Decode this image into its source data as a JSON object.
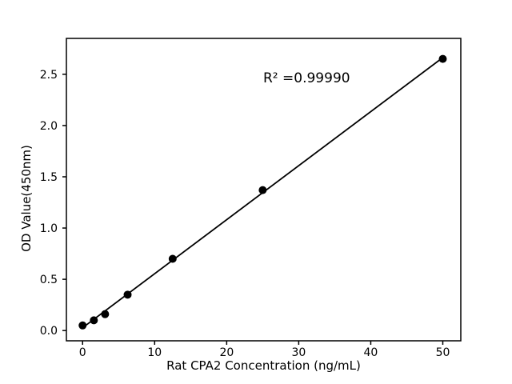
{
  "chart_data": {
    "type": "scatter",
    "title": "",
    "xlabel": "Rat CPA2 Concentration (ng/mL)",
    "ylabel": "OD Value(450nm)",
    "annotation": {
      "text": "R² =0.99990",
      "x": 25.2,
      "y": 2.45
    },
    "x": [
      0,
      1.56,
      3.12,
      6.25,
      12.5,
      25,
      50
    ],
    "y": [
      0.05,
      0.1,
      0.16,
      0.35,
      0.7,
      1.37,
      2.65
    ],
    "fit": "linear",
    "xlim": [
      -2.25,
      52.5
    ],
    "ylim": [
      -0.1,
      2.85
    ],
    "xticks": {
      "values": [
        0,
        10,
        20,
        30,
        40,
        50
      ],
      "labels": [
        "0",
        "10",
        "20",
        "30",
        "40",
        "50"
      ]
    },
    "yticks": {
      "values": [
        0,
        0.5,
        1.0,
        1.5,
        2.0,
        2.5
      ],
      "labels": [
        "0.0",
        "0.5",
        "1.0",
        "1.5",
        "2.0",
        "2.5"
      ]
    },
    "grid": false,
    "legend": null,
    "colors": {
      "marker": "#000000",
      "line": "#000000",
      "text": "#000000",
      "background": "#ffffff"
    }
  }
}
